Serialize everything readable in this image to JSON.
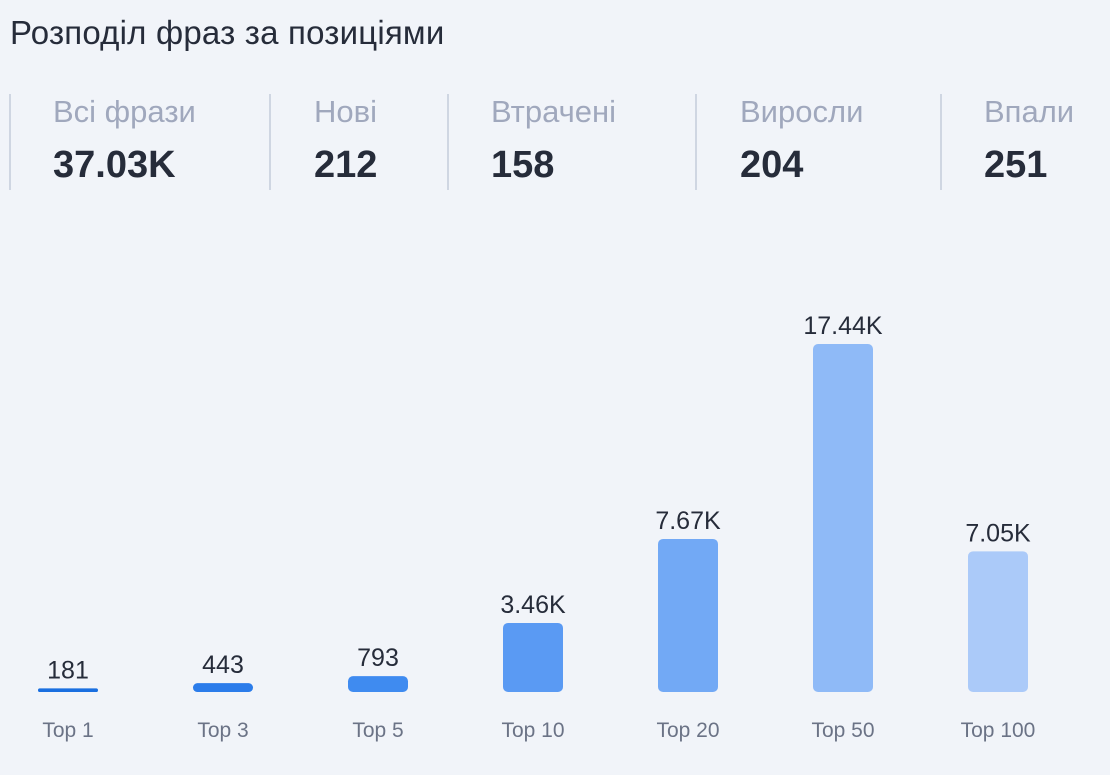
{
  "title": "Розподіл фраз за позиціями",
  "stats": [
    {
      "label": "Всі фрази",
      "value": "37.03K"
    },
    {
      "label": "Нові",
      "value": "212"
    },
    {
      "label": "Втрачені",
      "value": "158"
    },
    {
      "label": "Виросли",
      "value": "204"
    },
    {
      "label": "Впали",
      "value": "251"
    }
  ],
  "chart_data": {
    "type": "bar",
    "title": "",
    "xlabel": "",
    "ylabel": "",
    "categories": [
      "Top 1",
      "Top 3",
      "Top 5",
      "Top 10",
      "Top 20",
      "Top 50",
      "Top 100"
    ],
    "values": [
      181,
      443,
      793,
      3460,
      7670,
      17440,
      7050
    ],
    "value_labels": [
      "181",
      "443",
      "793",
      "3.46K",
      "7.67K",
      "17.44K",
      "7.05K"
    ],
    "colors": [
      "#1a6fe0",
      "#2b7cea",
      "#3f8bf0",
      "#5a9af3",
      "#72a9f5",
      "#8fbaf7",
      "#abcaf9"
    ],
    "grid": false,
    "legend": "none"
  }
}
